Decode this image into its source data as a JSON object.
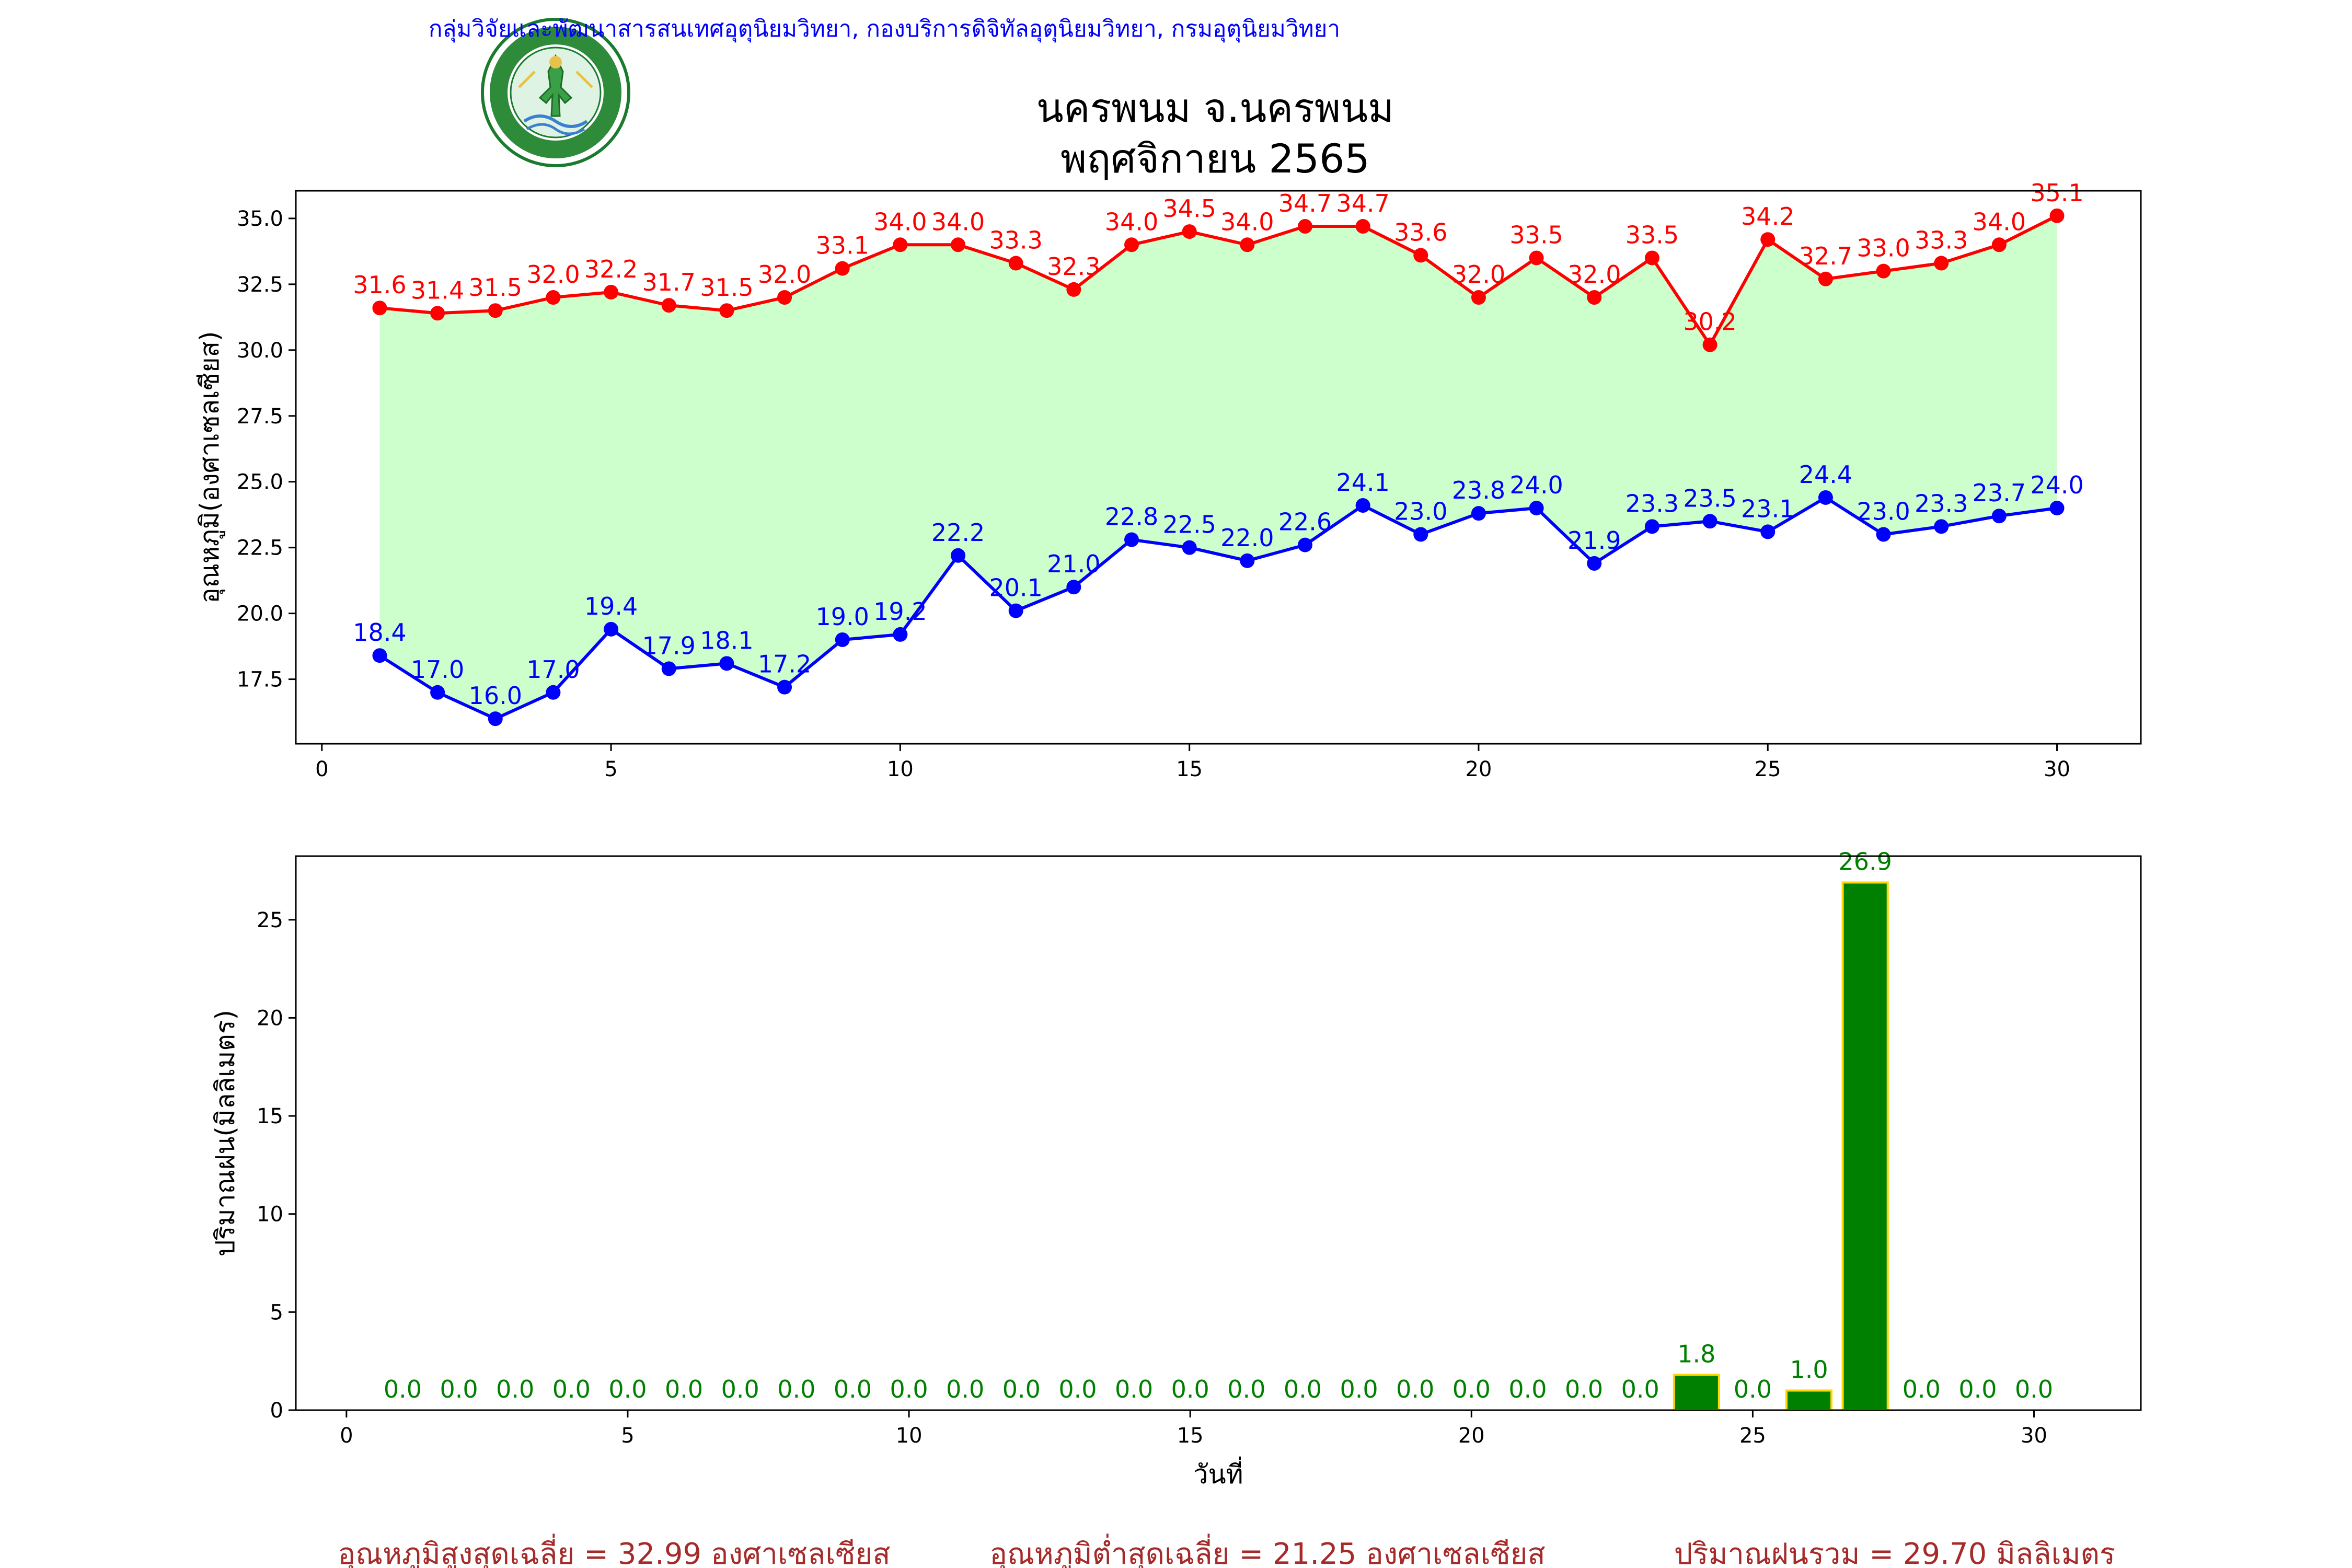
{
  "header": {
    "org_text": "กลุ่มวิจัยและพัฒนาสารสนเทศอุตุนิยมวิทยา, กองบริการดิจิทัลอุตุนิยมวิทยา, กรมอุตุนิยมวิทยา",
    "title": "นครพนม จ.นครพนม",
    "subtitle": "พฤศจิกายน 2565",
    "logo_icon": "meteorological-department-seal-icon",
    "logo_text": "กรมอุตุนิยมวิทยา METEOROLOGICAL DEPARTMENT"
  },
  "colors": {
    "max_line": "#ff0000",
    "min_line": "#0000ff",
    "range_fill": "#ccffcc",
    "rain_bar": "#008000",
    "rain_edge": "#ffd700",
    "header_text": "#0000ff",
    "footer_text": "#a52a2a"
  },
  "chart_data": [
    {
      "type": "line",
      "ylabel": "อุณหภูมิ(องศาเซลเซียส)",
      "xlabel": "",
      "x": [
        1,
        2,
        3,
        4,
        5,
        6,
        7,
        8,
        9,
        10,
        11,
        12,
        13,
        14,
        15,
        16,
        17,
        18,
        19,
        20,
        21,
        22,
        23,
        24,
        25,
        26,
        27,
        28,
        29,
        30
      ],
      "xlim": [
        -0.45,
        31.45
      ],
      "ylim": [
        15.05,
        36.05
      ],
      "xticks": [
        0,
        5,
        10,
        15,
        20,
        25,
        30
      ],
      "yticks": [
        17.5,
        20.0,
        22.5,
        25.0,
        27.5,
        30.0,
        32.5,
        35.0
      ],
      "grid": false,
      "series": [
        {
          "key": "max",
          "values": [
            31.6,
            31.4,
            31.5,
            32.0,
            32.2,
            31.7,
            31.5,
            32.0,
            33.1,
            34.0,
            34.0,
            33.3,
            32.3,
            34.0,
            34.5,
            34.0,
            34.7,
            34.7,
            33.6,
            32.0,
            33.5,
            32.0,
            33.5,
            30.2,
            34.2,
            32.7,
            33.0,
            33.3,
            34.0,
            35.1
          ]
        },
        {
          "key": "min",
          "values": [
            18.4,
            17.0,
            16.0,
            17.0,
            19.4,
            17.9,
            18.1,
            17.2,
            19.0,
            19.2,
            22.2,
            20.1,
            21.0,
            22.8,
            22.5,
            22.0,
            22.6,
            24.1,
            23.0,
            23.8,
            24.0,
            21.9,
            23.3,
            23.5,
            23.1,
            24.4,
            23.0,
            23.3,
            23.7,
            24.0
          ]
        }
      ]
    },
    {
      "type": "bar",
      "ylabel": "ปริมาณฝน(มิลลิเมตร)",
      "xlabel": "วันที่",
      "x": [
        1,
        2,
        3,
        4,
        5,
        6,
        7,
        8,
        9,
        10,
        11,
        12,
        13,
        14,
        15,
        16,
        17,
        18,
        19,
        20,
        21,
        22,
        23,
        24,
        25,
        26,
        27,
        28,
        29,
        30
      ],
      "values": [
        0.0,
        0.0,
        0.0,
        0.0,
        0.0,
        0.0,
        0.0,
        0.0,
        0.0,
        0.0,
        0.0,
        0.0,
        0.0,
        0.0,
        0.0,
        0.0,
        0.0,
        0.0,
        0.0,
        0.0,
        0.0,
        0.0,
        0.0,
        1.8,
        0.0,
        1.0,
        26.9,
        0.0,
        0.0,
        0.0
      ],
      "xlim": [
        -0.9,
        31.9
      ],
      "ylim": [
        0,
        28.245
      ],
      "xticks": [
        0,
        5,
        10,
        15,
        20,
        25,
        30
      ],
      "yticks": [
        0,
        5,
        10,
        15,
        20,
        25
      ],
      "grid": false
    }
  ],
  "footer": {
    "avg_max": "อุณหภูมิสูงสุดเฉลี่ย = 32.99 องศาเซลเซียส",
    "avg_min": "อุณหภูมิต่ำสุดเฉลี่ย = 21.25 องศาเซลเซียส",
    "rain_total": "ปริมาณฝนรวม = 29.70 มิลลิเมตร"
  }
}
